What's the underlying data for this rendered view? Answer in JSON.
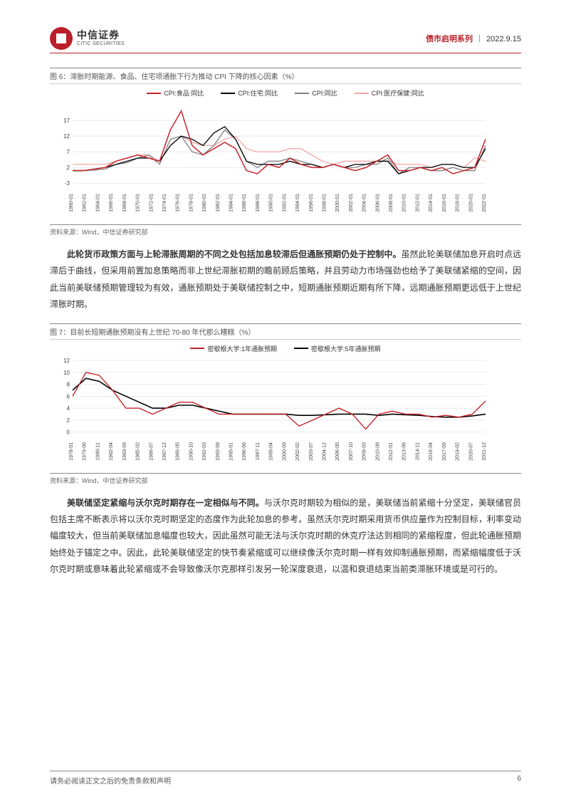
{
  "header": {
    "logo_cn": "中信证券",
    "logo_en": "CITIC SECURITIES",
    "series": "债市启明系列",
    "date": "2022.9.15"
  },
  "chart6": {
    "title": "图 6：滞胀时期能源、食品、住宅项通胀下行为推动 CPI 下降的核心因素（%）",
    "type": "line",
    "legend": [
      {
        "label": "CPI:食品:同比",
        "color": "#c6232a"
      },
      {
        "label": "CPI:住宅:同比",
        "color": "#000000"
      },
      {
        "label": "CPI:同比",
        "color": "#808080"
      },
      {
        "label": "CPI:医疗保健:同比",
        "color": "#f2a6a6"
      }
    ],
    "yticks": [
      -3,
      2,
      7,
      12,
      17
    ],
    "ylim": [
      -5,
      22
    ],
    "xticks": [
      "1960-01",
      "1962-01",
      "1964-01",
      "1966-01",
      "1968-01",
      "1970-01",
      "1972-01",
      "1974-01",
      "1976-01",
      "1978-01",
      "1980-01",
      "1982-01",
      "1984-01",
      "1986-01",
      "1988-01",
      "1990-01",
      "1992-01",
      "1994-01",
      "1996-01",
      "1998-01",
      "2000-01",
      "2002-01",
      "2004-01",
      "2006-01",
      "2008-01",
      "2010-01",
      "2012-01",
      "2014-01",
      "2016-01",
      "2018-01",
      "2020-01",
      "2022-01"
    ],
    "grid_color": "#dddddd",
    "background_color": "#ffffff",
    "source": "资料来源：Wind，中信证券研究部",
    "series": {
      "food": [
        1,
        1,
        1.5,
        2,
        4,
        5,
        6,
        5,
        4,
        14,
        20,
        9,
        6,
        8,
        10,
        8,
        1,
        0,
        3,
        2,
        5,
        3,
        2,
        2,
        3,
        2,
        1,
        2,
        4,
        6,
        1,
        1,
        2,
        1,
        2,
        0,
        1,
        2,
        11
      ],
      "housing": [
        1,
        1,
        1.5,
        2,
        3,
        4,
        5,
        5,
        4,
        9,
        12,
        11,
        9,
        13,
        15,
        11,
        4,
        3,
        3,
        3,
        4,
        3,
        3,
        2,
        3,
        2,
        3,
        3,
        4,
        4,
        0,
        1,
        2,
        2,
        3,
        3,
        2,
        2,
        8
      ],
      "cpi": [
        1,
        1,
        1.2,
        1.5,
        3,
        3.5,
        5,
        6,
        3,
        11,
        12,
        7,
        6,
        9,
        14,
        11,
        4,
        2,
        4,
        4,
        5,
        4,
        3,
        2,
        3,
        2,
        2,
        3,
        3,
        5,
        0,
        2,
        2,
        1,
        1,
        2,
        1,
        1,
        9
      ],
      "medical": [
        3,
        3,
        3,
        3,
        4,
        5,
        6,
        6,
        4,
        9,
        12,
        10,
        9,
        9,
        11,
        12,
        8,
        7,
        7,
        7,
        8,
        8,
        6,
        4,
        3,
        4,
        4,
        4,
        4,
        4,
        3,
        3,
        3,
        2,
        3,
        3,
        2,
        5,
        4
      ]
    }
  },
  "para1": {
    "bold": "此轮货币政策方面与上轮滞胀周期的不同之处包括加息较滞后但通胀预期仍处于控制中。",
    "rest": "虽然此轮美联储加息开启时点远滞后于曲线，但采用前置加息策略而非上世纪滞胀初期的瞻前顾后策略，并且劳动力市场强劲也给予了美联储紧缩的空间，因此当前美联储预期管理较为有效，通胀预期处于美联储控制之中，短期通胀预期近期有所下降，远期通胀预期更远低于上世纪滞胀时期。"
  },
  "chart7": {
    "title": "图 7：目前长短期通胀预期没有上世纪 70-80 年代那么糟糕（%）",
    "type": "line",
    "legend": [
      {
        "label": "密歇根大学:1年通胀预期",
        "color": "#c6232a"
      },
      {
        "label": "密歇根大学:5年通胀预期",
        "color": "#000000"
      }
    ],
    "yticks": [
      0,
      2,
      4,
      6,
      8,
      10,
      12
    ],
    "ylim": [
      -1,
      12
    ],
    "xticks": [
      "1978-01",
      "1979-06",
      "1980-11",
      "1982-04",
      "1983-09",
      "1985-02",
      "1986-07",
      "1987-12",
      "1989-05",
      "1990-10",
      "1992-03",
      "1993-08",
      "1995-01",
      "1996-06",
      "1997-11",
      "1999-04",
      "2000-09",
      "2002-02",
      "2003-07",
      "2004-12",
      "2006-05",
      "2007-10",
      "2009-03",
      "2010-08",
      "2012-01",
      "2013-06",
      "2014-11",
      "2016-04",
      "2017-09",
      "2019-02",
      "2020-07",
      "2021-12"
    ],
    "grid_color": "#dddddd",
    "background_color": "#ffffff",
    "source": "资料来源：Wind，中信证券研究部",
    "series": {
      "oneyr": [
        6,
        10,
        9.5,
        7,
        4,
        4,
        3,
        4,
        5,
        5,
        4,
        3,
        3,
        3,
        3,
        3,
        3,
        1,
        2,
        3,
        4,
        3,
        0.5,
        3,
        3.5,
        3,
        3,
        2.5,
        2.8,
        2.5,
        3,
        5.2
      ],
      "fiveyr": [
        7,
        9,
        8.5,
        7,
        6,
        5,
        4,
        4,
        4.5,
        4.5,
        4,
        3.5,
        3,
        3,
        3,
        3,
        3,
        2.8,
        2.8,
        2.9,
        3,
        3,
        3,
        2.8,
        3,
        2.9,
        2.8,
        2.6,
        2.5,
        2.5,
        2.7,
        3
      ]
    }
  },
  "para2": {
    "bold": "美联储坚定紧缩与沃尔克时期存在一定相似与不同。",
    "rest": "与沃尔克时期较为相似的是，美联储当前紧缩十分坚定，美联储官员包括主席不断表示将以沃尔克时期坚定的态度作为此轮加息的参考。虽然沃尔克时期采用货币供应量作为控制目标，利率变动幅度较大，但当前美联储加息幅度也较大，因此虽然可能无法与沃尔克时期的休克疗法达到相同的紧缩程度，但此轮通胀预期始终处于锚定之中。因此，此轮美联储坚定的快节奏紧缩或可以继续像沃尔克时期一样有效抑制通胀预期，而紧缩幅度低于沃尔克时期或意味着此轮紧缩或不会导致像沃尔克那样引发另一轮深度衰退，以温和衰退结束当前类滞胀环境或是可行的。"
  },
  "footer": {
    "disclaimer": "请务必阅读正文之后的免责条款和声明",
    "page": "6"
  }
}
